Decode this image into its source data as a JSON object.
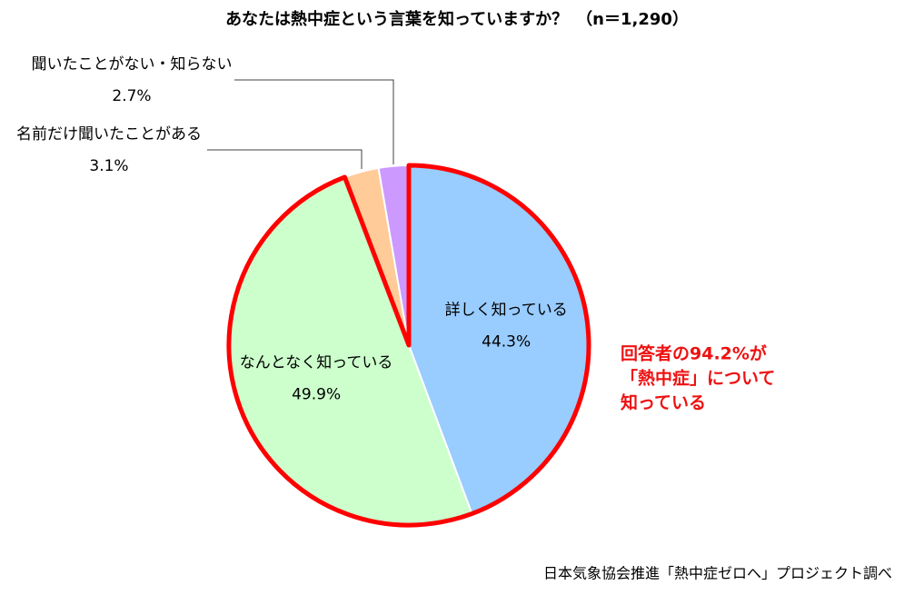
{
  "chart_data": {
    "type": "pie",
    "title": "あなたは熱中症という言葉を知っていますか？　（n＝1,290）",
    "categories": [
      "詳しく知っている",
      "なんとなく知っている",
      "名前だけ聞いたことがある",
      "聞いたことがない・知らない"
    ],
    "values": [
      44.3,
      49.9,
      3.1,
      2.7
    ],
    "value_labels": [
      "44.3%",
      "49.9%",
      "3.1%",
      "2.7%"
    ],
    "colors": [
      "#99ccff",
      "#ccffcc",
      "#ffcc99",
      "#cc99ff"
    ],
    "annotation": [
      "回答者の94.2%が",
      "「熱中症」について",
      "知っている"
    ],
    "source": "日本気象協会推進「熱中症ゼロへ」プロジェクト調べ"
  }
}
